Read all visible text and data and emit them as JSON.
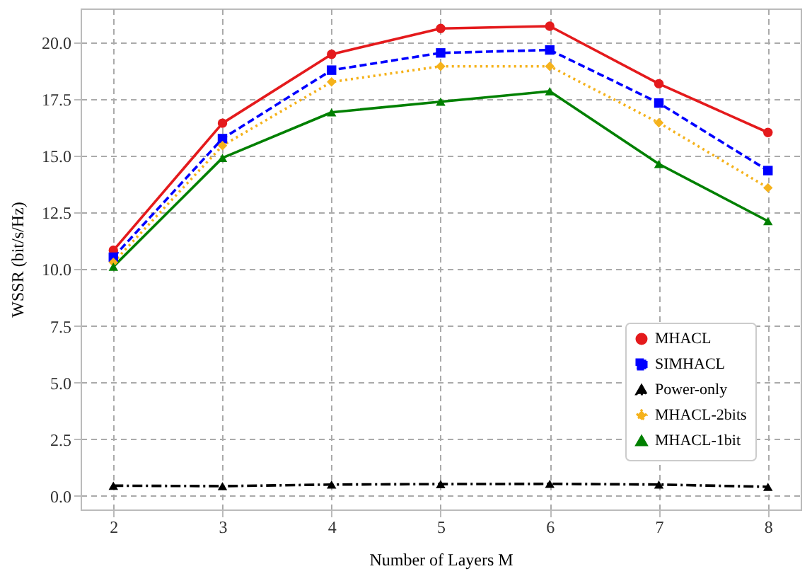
{
  "chart_data": {
    "type": "line",
    "xlabel": "Number of Layers M",
    "ylabel": "WSSR (bit/s/Hz)",
    "x": [
      2,
      3,
      4,
      5,
      6,
      7,
      8
    ],
    "series": [
      {
        "name": "MHACL",
        "color": "#e41a1c",
        "marker": "circle",
        "line_style": "solid",
        "values": [
          10.83,
          16.44,
          19.48,
          20.62,
          20.72,
          18.18,
          16.03
        ]
      },
      {
        "name": "SIMHACL",
        "color": "#0000ff",
        "marker": "square",
        "line_style": "dashed",
        "values": [
          10.53,
          15.76,
          18.78,
          19.54,
          19.67,
          17.33,
          14.35
        ]
      },
      {
        "name": "Power-only",
        "color": "#000000",
        "marker": "triangle",
        "line_style": "dashdot",
        "values": [
          0.45,
          0.43,
          0.5,
          0.52,
          0.53,
          0.5,
          0.4
        ]
      },
      {
        "name": "MHACL-2bits",
        "color": "#f5b21b",
        "marker": "diamond",
        "line_style": "dotted",
        "values": [
          10.3,
          15.45,
          18.26,
          18.95,
          18.95,
          16.46,
          13.59
        ]
      },
      {
        "name": "MHACL-1bit",
        "color": "#008000",
        "marker": "triangle",
        "line_style": "solid",
        "values": [
          10.11,
          14.91,
          16.92,
          17.39,
          17.85,
          14.64,
          12.12
        ]
      }
    ],
    "xlim": [
      1.7,
      8.3
    ],
    "xticks": [
      2,
      3,
      4,
      5,
      6,
      7,
      8
    ],
    "ylim": [
      -0.6,
      21.5
    ],
    "yticks": [
      {
        "value": 0,
        "label": "0.0"
      },
      {
        "value": 2.5,
        "label": "2.5"
      },
      {
        "value": 5,
        "label": "5.0"
      },
      {
        "value": 7.5,
        "label": "7.5"
      },
      {
        "value": 10,
        "label": "10.0"
      },
      {
        "value": 12.5,
        "label": "12.5"
      },
      {
        "value": 15,
        "label": "15.0"
      },
      {
        "value": 17.5,
        "label": "17.5"
      },
      {
        "value": 20,
        "label": "20.0"
      }
    ],
    "grid": true,
    "legend": "bottom right"
  }
}
